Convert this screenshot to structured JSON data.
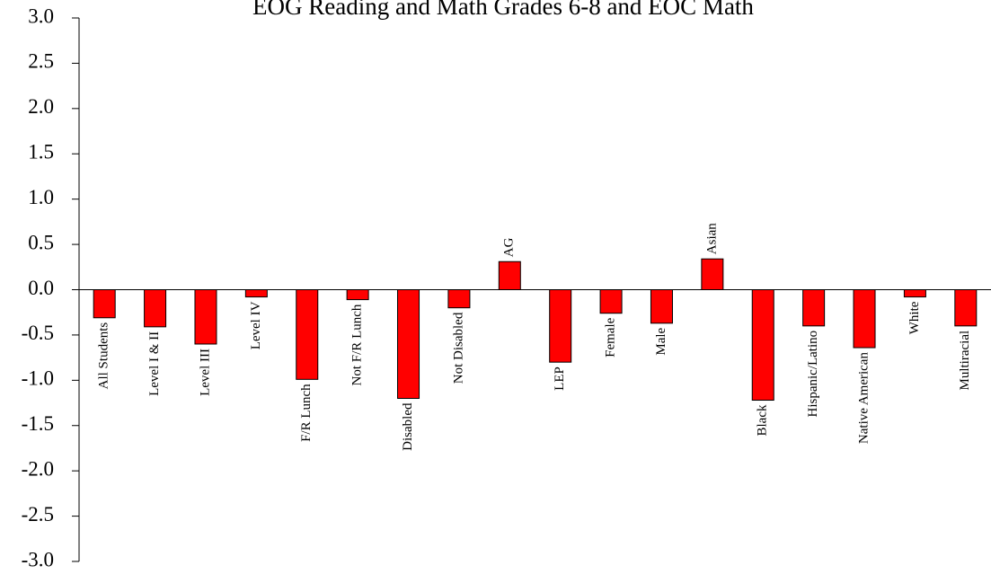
{
  "chart_data": {
    "type": "bar",
    "title": "EOG Reading and Math Grades 6-8 and EOC Math",
    "categories": [
      "All Students",
      "Level I & II",
      "Level III",
      "Level IV",
      "F/R Lunch",
      "Not F/R Lunch",
      "Disabled",
      "Not Disabled",
      "AG",
      "LEP",
      "Female",
      "Male",
      "Asian",
      "Black",
      "Hispanic/Latino",
      "Native American",
      "White",
      "Multiracial"
    ],
    "values": [
      -0.31,
      -0.41,
      -0.6,
      -0.08,
      -0.99,
      -0.11,
      -1.2,
      -0.2,
      0.31,
      -0.8,
      -0.26,
      -0.37,
      0.34,
      -1.22,
      -0.4,
      -0.64,
      -0.08,
      -0.4
    ],
    "color": "#ff0000",
    "ylim": [
      -3,
      3
    ],
    "yticks": [
      {
        "value": -3,
        "label": "-3.0"
      },
      {
        "value": -2.5,
        "label": "-2.5"
      },
      {
        "value": -2,
        "label": "-2.0"
      },
      {
        "value": -1.5,
        "label": "-1.5"
      },
      {
        "value": -1,
        "label": "-1.0"
      },
      {
        "value": -0.5,
        "label": "-0.5"
      },
      {
        "value": 0,
        "label": "0.0"
      },
      {
        "value": 0.5,
        "label": "0.5"
      },
      {
        "value": 1,
        "label": "1.0"
      },
      {
        "value": 1.5,
        "label": "1.5"
      },
      {
        "value": 2,
        "label": "2.0"
      },
      {
        "value": 2.5,
        "label": "2.5"
      },
      {
        "value": 3,
        "label": "3.0"
      }
    ],
    "grid": false
  }
}
